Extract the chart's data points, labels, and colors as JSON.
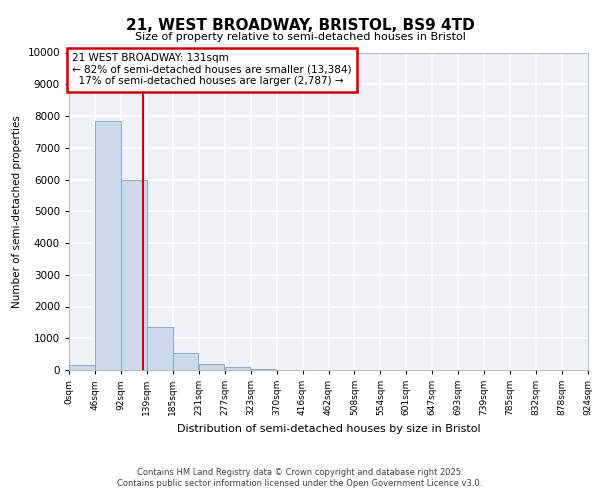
{
  "title_line1": "21, WEST BROADWAY, BRISTOL, BS9 4TD",
  "title_line2": "Size of property relative to semi-detached houses in Bristol",
  "xlabel": "Distribution of semi-detached houses by size in Bristol",
  "ylabel": "Number of semi-detached properties",
  "bar_values": [
    150,
    7850,
    6000,
    1350,
    550,
    200,
    100,
    30,
    5,
    2,
    1,
    1,
    0,
    0,
    0,
    0,
    0,
    0,
    0,
    0
  ],
  "bin_labels": [
    "0sqm",
    "46sqm",
    "92sqm",
    "139sqm",
    "185sqm",
    "231sqm",
    "277sqm",
    "323sqm",
    "370sqm",
    "416sqm",
    "462sqm",
    "508sqm",
    "554sqm",
    "601sqm",
    "647sqm",
    "693sqm",
    "739sqm",
    "785sqm",
    "832sqm",
    "878sqm",
    "924sqm"
  ],
  "bar_color": "#ccd9e8",
  "bar_edge_color": "#7aa3c8",
  "property_size": 131,
  "pct_smaller": 82,
  "n_smaller": 13384,
  "pct_larger": 17,
  "n_larger": 2787,
  "vline_color": "#cc0000",
  "annotation_box_color": "#cc0000",
  "ylim": [
    0,
    10000
  ],
  "yticks": [
    0,
    1000,
    2000,
    3000,
    4000,
    5000,
    6000,
    7000,
    8000,
    9000,
    10000
  ],
  "footnote1": "Contains HM Land Registry data © Crown copyright and database right 2025.",
  "footnote2": "Contains public sector information licensed under the Open Government Licence v3.0.",
  "background_color": "#eef2f7",
  "grid_color": "#ffffff",
  "bin_width": 46
}
